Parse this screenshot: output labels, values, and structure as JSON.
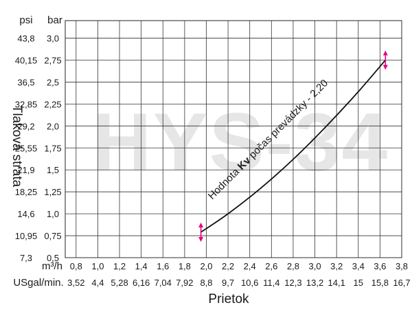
{
  "chart_data": {
    "type": "line",
    "watermark": "HYS-34",
    "xlabel": "Prietok",
    "ylabel": "Tlaková strata",
    "x_unit_primary": "m³/h",
    "x_unit_secondary": "USgal/min.",
    "y_unit_left": "psi",
    "y_unit_right": "bar",
    "x_ticks_m3h": [
      "0,8",
      "1,0",
      "1,2",
      "1,4",
      "1,6",
      "1,8",
      "2,0",
      "2,2",
      "2,4",
      "2,6",
      "2,8",
      "3,0",
      "3,2",
      "3,4",
      "3,6",
      "3,8"
    ],
    "x_ticks_usgal": [
      "3,52",
      "4,4",
      "5,28",
      "6,16",
      "7,04",
      "7,92",
      "8,8",
      "9,7",
      "10,6",
      "11,4",
      "12,3",
      "13,2",
      "14,1",
      "15",
      "15,8",
      "16,7"
    ],
    "y_ticks_bar": [
      "0,5",
      "0,75",
      "1,0",
      "1,25",
      "1,5",
      "1,75",
      "2,0",
      "2,25",
      "2,5",
      "2,75",
      "3,0"
    ],
    "y_ticks_psi": [
      "7,3",
      "10,95",
      "14,6",
      "18,25",
      "21,9",
      "25,55",
      "29,2",
      "32,85",
      "36,5",
      "40,15",
      "43,8"
    ],
    "xlim": [
      0.7,
      3.8
    ],
    "ylim": [
      0.5,
      3.2
    ],
    "grid": true,
    "annotation_pre": "Hodnota ",
    "annotation_bold": "Kv",
    "annotation_post": " počas prevádzky - 2,20",
    "series": [
      {
        "color": "#111111",
        "x": [
          1.95,
          2.2,
          2.5,
          2.8,
          3.1,
          3.4,
          3.65
        ],
        "y": [
          0.79,
          1.0,
          1.29,
          1.62,
          1.99,
          2.39,
          2.75
        ]
      }
    ],
    "range_markers": [
      {
        "x": 1.95,
        "y": 0.79,
        "color": "#e6007e"
      },
      {
        "x": 3.65,
        "y": 2.75,
        "color": "#e6007e"
      }
    ]
  }
}
